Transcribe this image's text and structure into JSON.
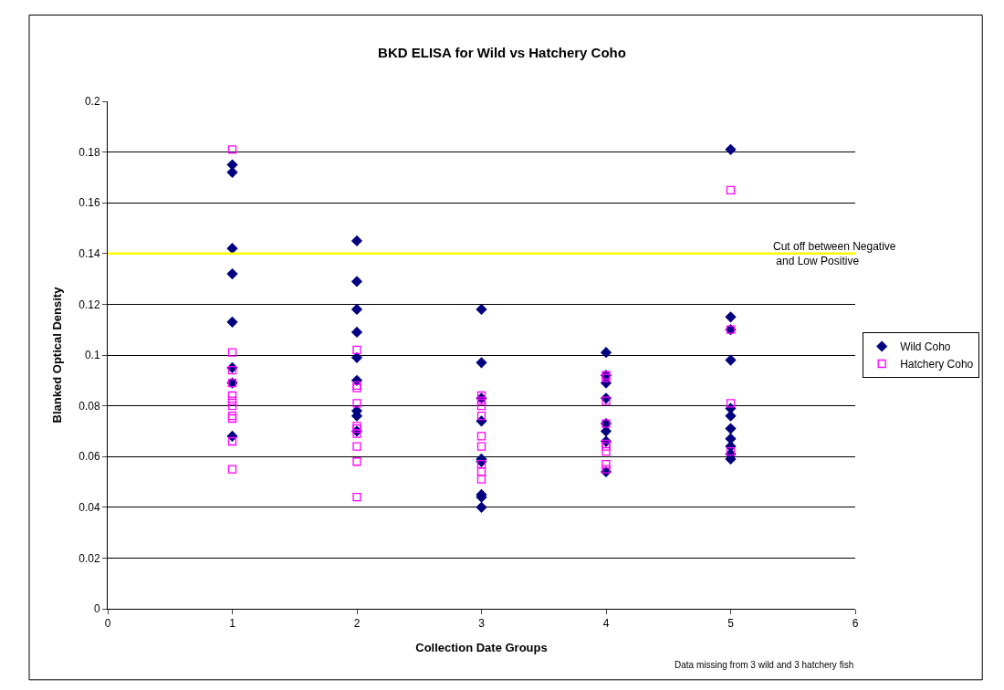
{
  "chart_data": {
    "type": "scatter",
    "title": "BKD ELISA for Wild vs Hatchery Coho",
    "xlabel": "Collection Date Groups",
    "ylabel": "Blanked Optical Density",
    "xlim": [
      0,
      6
    ],
    "xticks": [
      0,
      1,
      2,
      3,
      4,
      5,
      6
    ],
    "ylim": [
      0,
      0.2
    ],
    "yticks": [
      0,
      0.02,
      0.04,
      0.06,
      0.08,
      0.1,
      0.12,
      0.14,
      0.16,
      0.18,
      0.2
    ],
    "grid": "y",
    "legend": "right",
    "ref_lines": [
      {
        "axis": "y",
        "value": 0.14,
        "label": "Cut off between Negative\n and Low Positive",
        "color": "#ffff00"
      }
    ],
    "annotations": [
      "Data missing from 3 wild and 3 hatchery fish"
    ],
    "series": [
      {
        "name": "Wild Coho",
        "color": "#000080",
        "marker": "diamond",
        "x": [
          1,
          1,
          1,
          1,
          1,
          1,
          1,
          1,
          2,
          2,
          2,
          2,
          2,
          2,
          2,
          2,
          2,
          3,
          3,
          3,
          3,
          3,
          3,
          3,
          3,
          3,
          4,
          4,
          4,
          4,
          4,
          4,
          4,
          4,
          5,
          5,
          5,
          5,
          5,
          5,
          5,
          5,
          5,
          5,
          5
        ],
        "values": [
          0.175,
          0.172,
          0.142,
          0.132,
          0.113,
          0.095,
          0.089,
          0.068,
          0.145,
          0.129,
          0.118,
          0.109,
          0.099,
          0.09,
          0.078,
          0.076,
          0.07,
          0.118,
          0.097,
          0.083,
          0.074,
          0.059,
          0.058,
          0.045,
          0.044,
          0.04,
          0.101,
          0.092,
          0.089,
          0.083,
          0.073,
          0.07,
          0.066,
          0.054,
          0.181,
          0.115,
          0.11,
          0.098,
          0.079,
          0.076,
          0.071,
          0.067,
          0.064,
          0.061,
          0.059
        ]
      },
      {
        "name": "Hatchery Coho",
        "color": "#ff00ff",
        "marker": "square-open",
        "x": [
          1,
          1,
          1,
          1,
          1,
          1,
          1,
          1,
          1,
          1,
          1,
          2,
          2,
          2,
          2,
          2,
          2,
          2,
          2,
          2,
          2,
          3,
          3,
          3,
          3,
          3,
          3,
          3,
          3,
          3,
          4,
          4,
          4,
          4,
          4,
          4,
          4,
          4,
          4,
          5,
          5,
          5,
          5
        ],
        "values": [
          0.181,
          0.101,
          0.094,
          0.089,
          0.084,
          0.082,
          0.08,
          0.076,
          0.075,
          0.066,
          0.055,
          0.102,
          0.088,
          0.087,
          0.081,
          0.072,
          0.071,
          0.069,
          0.064,
          0.058,
          0.044,
          0.084,
          0.082,
          0.08,
          0.076,
          0.068,
          0.064,
          0.057,
          0.054,
          0.051,
          0.092,
          0.091,
          0.082,
          0.073,
          0.065,
          0.064,
          0.062,
          0.057,
          0.055,
          0.165,
          0.11,
          0.081,
          0.062
        ]
      }
    ]
  }
}
